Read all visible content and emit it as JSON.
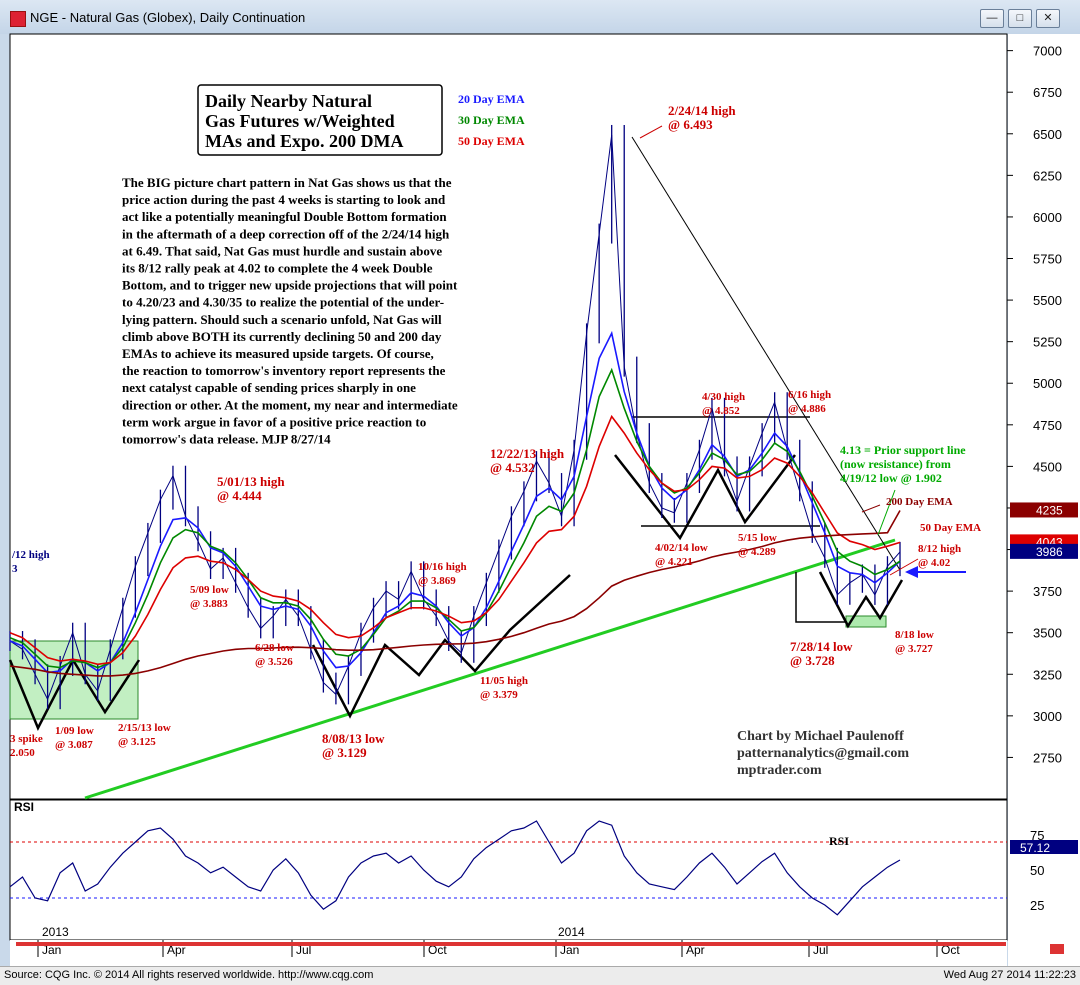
{
  "window": {
    "title": "NGE - Natural Gas (Globex), Daily Continuation",
    "controls": [
      "—",
      "□",
      "✕"
    ]
  },
  "footer": {
    "left": "Source: CQG Inc. © 2014 All rights reserved worldwide. http://www.cqg.com",
    "right": "Wed Aug 27 2014 11:22:23"
  },
  "colors": {
    "ema20": "#1a1aff",
    "ema30": "#008800",
    "ema50": "#dd0000",
    "dma200": "#8b0000",
    "trend": "#22cc22",
    "price": "#000080",
    "annotation": "#cc0000"
  },
  "chart_data": [
    {
      "type": "line",
      "title_box": [
        "Daily Nearby Natural",
        "Gas Futures w/Weighted",
        "MAs and Expo. 200 DMA"
      ],
      "legend": [
        {
          "name": "20 Day EMA",
          "color": "#1a1aff"
        },
        {
          "name": "30 Day EMA",
          "color": "#008800"
        },
        {
          "name": "50 Day EMA",
          "color": "#dd0000"
        }
      ],
      "ylim": [
        2500,
        7100
      ],
      "y_ticks": [
        7000,
        6750,
        6500,
        6250,
        6000,
        5750,
        5500,
        5250,
        5000,
        4750,
        4500,
        4250,
        4000,
        3750,
        3500,
        3250,
        3000,
        2750
      ],
      "price_badges": [
        {
          "value": "4235",
          "color": "#8b0000",
          "y": 4235
        },
        {
          "value": "4043",
          "color": "#dd0000",
          "y": 4043
        },
        {
          "value": "3986",
          "color": "#000080",
          "y": 3986
        }
      ],
      "x_month_labels": [
        "Jan",
        "Apr",
        "Jul",
        "Oct",
        "Jan",
        "Apr",
        "Jul",
        "Oct"
      ],
      "x_year_labels": [
        "2013",
        "2014"
      ],
      "series": [
        {
          "name": "Price",
          "values": [
            3450,
            3400,
            3250,
            3100,
            3300,
            3500,
            3250,
            3150,
            3400,
            3650,
            3900,
            4100,
            4300,
            4444,
            4200,
            4050,
            3883,
            3950,
            3800,
            3650,
            3526,
            3600,
            3700,
            3600,
            3400,
            3200,
            3129,
            3300,
            3500,
            3650,
            3750,
            3700,
            3869,
            3700,
            3600,
            3450,
            3379,
            3600,
            3800,
            4000,
            4200,
            4350,
            4532,
            4400,
            4200,
            4600,
            5300,
            5900,
            6493,
            5100,
            4700,
            4400,
            4250,
            4221,
            4400,
            4600,
            4852,
            4500,
            4289,
            4500,
            4700,
            4886,
            4600,
            4350,
            4100,
            3950,
            3728,
            3800,
            3850,
            3727,
            3900,
            3986
          ]
        },
        {
          "name": "20 Day EMA",
          "values": [
            3450,
            3420,
            3340,
            3260,
            3270,
            3340,
            3320,
            3270,
            3320,
            3440,
            3620,
            3820,
            4020,
            4180,
            4190,
            4130,
            4010,
            3980,
            3900,
            3780,
            3660,
            3640,
            3660,
            3640,
            3540,
            3390,
            3290,
            3300,
            3380,
            3500,
            3620,
            3660,
            3740,
            3720,
            3660,
            3560,
            3480,
            3530,
            3650,
            3810,
            3990,
            4150,
            4320,
            4370,
            4300,
            4440,
            4800,
            5150,
            5300,
            4950,
            4700,
            4500,
            4370,
            4300,
            4360,
            4480,
            4630,
            4560,
            4440,
            4480,
            4580,
            4700,
            4620,
            4460,
            4280,
            4100,
            3900,
            3860,
            3850,
            3800,
            3860,
            3930
          ]
        },
        {
          "name": "30 Day EMA",
          "values": [
            3470,
            3440,
            3370,
            3300,
            3290,
            3330,
            3320,
            3290,
            3320,
            3410,
            3560,
            3730,
            3920,
            4070,
            4120,
            4100,
            4020,
            3990,
            3920,
            3820,
            3710,
            3680,
            3680,
            3660,
            3580,
            3460,
            3370,
            3360,
            3400,
            3490,
            3590,
            3630,
            3690,
            3690,
            3650,
            3580,
            3510,
            3530,
            3620,
            3750,
            3900,
            4040,
            4200,
            4260,
            4230,
            4340,
            4600,
            4920,
            5080,
            4850,
            4650,
            4500,
            4400,
            4340,
            4370,
            4460,
            4580,
            4540,
            4450,
            4470,
            4540,
            4640,
            4590,
            4470,
            4320,
            4160,
            3990,
            3930,
            3900,
            3850,
            3880,
            3930
          ]
        },
        {
          "name": "50 Day EMA",
          "values": [
            3500,
            3470,
            3410,
            3350,
            3330,
            3340,
            3330,
            3310,
            3320,
            3380,
            3480,
            3610,
            3760,
            3890,
            3950,
            3960,
            3930,
            3920,
            3880,
            3820,
            3750,
            3720,
            3710,
            3690,
            3640,
            3560,
            3490,
            3470,
            3480,
            3530,
            3590,
            3620,
            3650,
            3650,
            3630,
            3600,
            3560,
            3570,
            3620,
            3700,
            3810,
            3920,
            4040,
            4110,
            4120,
            4200,
            4380,
            4620,
            4800,
            4700,
            4580,
            4480,
            4400,
            4350,
            4360,
            4420,
            4500,
            4490,
            4430,
            4440,
            4480,
            4550,
            4520,
            4440,
            4340,
            4220,
            4100,
            4050,
            4030,
            4000,
            4020,
            4043
          ]
        },
        {
          "name": "200 Day EMA",
          "values": [
            3300,
            3290,
            3280,
            3265,
            3255,
            3250,
            3245,
            3240,
            3240,
            3245,
            3255,
            3270,
            3290,
            3315,
            3340,
            3360,
            3375,
            3390,
            3400,
            3405,
            3405,
            3408,
            3412,
            3413,
            3410,
            3405,
            3398,
            3395,
            3395,
            3398,
            3405,
            3412,
            3420,
            3426,
            3430,
            3432,
            3433,
            3437,
            3446,
            3460,
            3478,
            3500,
            3527,
            3552,
            3570,
            3597,
            3645,
            3710,
            3780,
            3815,
            3840,
            3862,
            3880,
            3895,
            3912,
            3932,
            3955,
            3972,
            3985,
            4000,
            4018,
            4040,
            4056,
            4068,
            4076,
            4082,
            4086,
            4090,
            4094,
            4097,
            4101,
            4235
          ]
        }
      ]
    },
    {
      "type": "line",
      "title": "RSI",
      "inline_label": "RSI",
      "ylim": [
        0,
        100
      ],
      "y_ticks": [
        75,
        50,
        25
      ],
      "guide_levels": [
        70,
        30
      ],
      "badge": "57.12",
      "series": [
        {
          "name": "RSI",
          "values": [
            38,
            45,
            30,
            28,
            48,
            55,
            35,
            40,
            52,
            62,
            70,
            78,
            80,
            72,
            60,
            55,
            48,
            52,
            45,
            38,
            35,
            50,
            58,
            48,
            32,
            22,
            28,
            45,
            55,
            60,
            62,
            55,
            60,
            50,
            42,
            38,
            45,
            58,
            66,
            72,
            78,
            80,
            85,
            70,
            55,
            62,
            78,
            85,
            82,
            60,
            48,
            40,
            38,
            36,
            45,
            55,
            62,
            52,
            40,
            48,
            56,
            62,
            48,
            38,
            30,
            25,
            18,
            28,
            38,
            45,
            52,
            57.12
          ]
        }
      ]
    }
  ],
  "annotations": {
    "commentary": [
      "The BIG picture chart pattern in Nat Gas shows us that the",
      "price action during the past 4 weeks is starting to look and",
      "act like a potentially meaningful Double Bottom formation",
      "in the aftermath of a deep correction off of the 2/24/14 high",
      "at 6.49. That said, Nat Gas must hurdle and sustain above",
      "its 8/12 rally peak at 4.02 to complete the 4 week Double",
      "Bottom, and to trigger new upside projections that will point",
      "to 4.20/23 and 4.30/35 to realize the potential of the under-",
      "lying pattern. Should such a scenario unfold, Nat Gas will",
      "climb above BOTH its currently declining 50 and 200 day",
      "EMAs to achieve its measured upside targets. Of course,",
      "the reaction to tomorrow's inventory report represents the",
      "next catalyst capable of sending prices sharply in one",
      "direction or other. At the moment, my near and intermediate",
      "term work argue in favor of a positive price reaction to",
      "tomorrow's data release.  MJP 8/27/14"
    ],
    "credit": [
      "Chart by Michael Paulenoff",
      "patternanalytics@gmail.com",
      "mptrader.com"
    ],
    "support_note": [
      "4.13 = Prior support line",
      "(now resistance) from",
      "4/19/12 low @ 1.902"
    ],
    "labels": [
      {
        "text": [
          "2/24/14 high",
          "@ 6.493"
        ]
      },
      {
        "text": [
          "12/22/13 high",
          "@ 4.532"
        ]
      },
      {
        "text": [
          "4/30 high",
          "@ 4.852"
        ]
      },
      {
        "text": [
          "6/16 high",
          "@ 4.886"
        ]
      },
      {
        "text": [
          "5/01/13 high",
          "@ 4.444"
        ]
      },
      {
        "text": [
          "5/09 low",
          "@ 3.883"
        ]
      },
      {
        "text": [
          "10/16 high",
          "@ 3.869"
        ]
      },
      {
        "text": [
          "6/28 low",
          "@ 3.526"
        ]
      },
      {
        "text": [
          "11/05 high",
          "@ 3.379"
        ]
      },
      {
        "text": [
          "8/08/13 low",
          "@ 3.129"
        ]
      },
      {
        "text": [
          "1/09 low",
          "@ 3.087"
        ]
      },
      {
        "text": [
          "2/15/13 low",
          "@ 3.125"
        ]
      },
      {
        "text": [
          "3 spike",
          "2.050"
        ]
      },
      {
        "text": [
          "/12 high",
          "3"
        ]
      },
      {
        "text": [
          "4/02/14 low",
          "@ 4.221"
        ]
      },
      {
        "text": [
          "5/15 low",
          "@ 4.289"
        ]
      },
      {
        "text": [
          "7/28/14 low",
          "@ 3.728"
        ]
      },
      {
        "text": [
          "8/18 low",
          "@ 3.727"
        ]
      },
      {
        "text": [
          "8/12 high",
          "@ 4.02"
        ]
      },
      {
        "text": [
          "200 Day EMA"
        ]
      },
      {
        "text": [
          "50 Day EMA"
        ]
      }
    ]
  }
}
